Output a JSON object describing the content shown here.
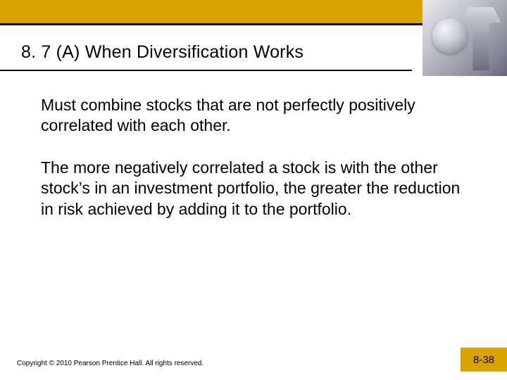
{
  "colors": {
    "accent": "#d9a400",
    "rule": "#000000",
    "background": "#ffffff",
    "text": "#000000"
  },
  "typography": {
    "title_font": "Arial",
    "body_font": "Verdana",
    "title_size_pt": 19,
    "body_size_pt": 17,
    "footer_size_pt": 7.5
  },
  "header": {
    "title": "8. 7 (A)  When Diversification Works"
  },
  "body": {
    "para1": "Must combine stocks that are not perfectly positively correlated with each other.",
    "para2": "The more negatively correlated a stock is with the other stock’s in an investment portfolio, the greater the reduction in risk achieved by adding it to the portfolio."
  },
  "footer": {
    "copyright": "Copyright © 2010 Pearson Prentice Hall. All rights reserved.",
    "page": "8-38"
  },
  "corner_image": {
    "description": "wrench-and-sphere-photo",
    "semantic": "decorative-photo"
  }
}
